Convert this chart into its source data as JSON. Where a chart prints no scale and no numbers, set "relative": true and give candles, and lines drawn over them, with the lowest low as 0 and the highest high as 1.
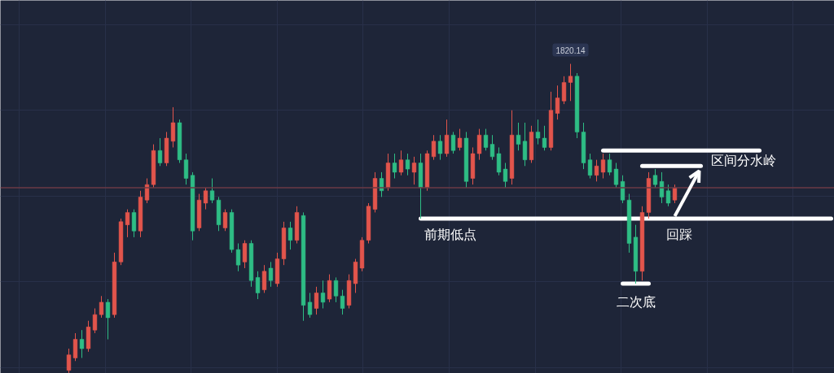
{
  "chart_data": {
    "type": "candlestick",
    "relative": true,
    "grid": true,
    "categories": [
      null,
      null,
      null,
      null,
      null,
      null,
      null,
      null,
      null,
      null,
      null,
      null,
      null,
      null,
      null,
      null,
      null,
      null,
      null,
      null,
      null,
      null,
      null,
      null,
      null,
      null,
      null,
      null,
      null,
      null,
      null,
      null,
      null,
      null,
      null,
      null,
      null,
      null,
      null,
      null,
      null,
      null,
      null,
      null,
      null,
      null,
      null,
      null,
      null,
      null,
      null,
      null,
      null,
      null,
      null,
      null,
      null,
      null,
      null,
      null,
      null,
      null,
      null,
      null,
      null,
      null,
      null,
      null,
      null,
      null,
      null,
      null,
      null,
      null,
      null,
      null,
      null,
      null,
      null,
      null,
      null,
      null,
      null,
      null,
      null,
      null,
      null,
      null,
      null,
      null,
      null,
      null,
      null,
      null,
      null,
      null,
      null,
      null,
      null,
      null,
      null,
      null,
      null,
      null,
      null,
      null,
      null,
      null,
      null,
      null,
      null,
      null,
      null,
      null,
      null,
      null,
      null,
      null,
      null,
      null,
      null,
      null,
      null,
      null,
      null,
      null,
      null,
      null
    ],
    "ohlc": [
      null,
      null,
      null,
      null,
      null,
      null,
      null,
      null,
      null,
      null,
      [
        0.01,
        0.08,
        0.0,
        0.06
      ],
      [
        0.05,
        0.13,
        0.04,
        0.11
      ],
      [
        0.11,
        0.14,
        0.05,
        0.08
      ],
      [
        0.08,
        0.17,
        0.07,
        0.15
      ],
      [
        0.14,
        0.21,
        0.13,
        0.19
      ],
      [
        0.19,
        0.25,
        0.18,
        0.23
      ],
      [
        0.23,
        0.24,
        0.11,
        0.18
      ],
      [
        0.19,
        0.39,
        0.18,
        0.36
      ],
      [
        0.36,
        0.5,
        0.35,
        0.49
      ],
      [
        0.48,
        0.53,
        0.44,
        0.52
      ],
      [
        0.52,
        0.53,
        0.44,
        0.46
      ],
      [
        0.46,
        0.59,
        0.44,
        0.57
      ],
      [
        0.56,
        0.63,
        0.55,
        0.61
      ],
      [
        0.61,
        0.74,
        0.6,
        0.72
      ],
      [
        0.72,
        0.76,
        0.67,
        0.68
      ],
      [
        0.68,
        0.78,
        0.67,
        0.76
      ],
      [
        0.75,
        0.86,
        0.73,
        0.81
      ],
      [
        0.81,
        0.82,
        0.68,
        0.69
      ],
      [
        0.69,
        0.71,
        0.61,
        0.63
      ],
      [
        0.64,
        0.65,
        0.43,
        0.46
      ],
      [
        0.47,
        0.58,
        0.46,
        0.56
      ],
      [
        0.55,
        0.6,
        0.53,
        0.59
      ],
      [
        0.59,
        0.63,
        0.55,
        0.56
      ],
      [
        0.56,
        0.57,
        0.46,
        0.48
      ],
      [
        0.47,
        0.53,
        0.46,
        0.52
      ],
      [
        0.52,
        0.53,
        0.39,
        0.4
      ],
      [
        0.4,
        0.42,
        0.33,
        0.35
      ],
      [
        0.36,
        0.43,
        0.34,
        0.42
      ],
      [
        0.42,
        0.43,
        0.28,
        0.3
      ],
      [
        0.31,
        0.33,
        0.24,
        0.26
      ],
      [
        0.27,
        0.35,
        0.26,
        0.33
      ],
      [
        0.34,
        0.36,
        0.28,
        0.3
      ],
      [
        0.29,
        0.39,
        0.28,
        0.37
      ],
      [
        0.37,
        0.49,
        0.35,
        0.47
      ],
      [
        0.47,
        0.49,
        0.4,
        0.43
      ],
      [
        0.43,
        0.54,
        0.42,
        0.52
      ],
      [
        0.51,
        0.52,
        0.17,
        0.22
      ],
      [
        0.23,
        0.26,
        0.18,
        0.19
      ],
      [
        0.21,
        0.28,
        0.19,
        0.26
      ],
      [
        0.26,
        0.3,
        0.21,
        0.23
      ],
      [
        0.24,
        0.32,
        0.23,
        0.3
      ],
      [
        0.3,
        0.31,
        0.23,
        0.25
      ],
      [
        0.25,
        0.27,
        0.19,
        0.21
      ],
      [
        0.22,
        0.32,
        0.21,
        0.3
      ],
      [
        0.29,
        0.37,
        0.26,
        0.36
      ],
      [
        0.34,
        0.44,
        0.33,
        0.43
      ],
      [
        0.43,
        0.55,
        0.42,
        0.54
      ],
      [
        0.53,
        0.65,
        0.52,
        0.63
      ],
      [
        0.63,
        0.65,
        0.57,
        0.59
      ],
      [
        0.6,
        0.71,
        0.59,
        0.68
      ],
      [
        0.68,
        0.71,
        0.63,
        0.65
      ],
      [
        0.65,
        0.72,
        0.64,
        0.69
      ],
      [
        0.69,
        0.71,
        0.64,
        0.66
      ],
      [
        0.65,
        0.7,
        0.61,
        0.68
      ],
      [
        0.68,
        0.71,
        0.5,
        0.6
      ],
      [
        0.6,
        0.72,
        0.59,
        0.71
      ],
      [
        0.7,
        0.77,
        0.69,
        0.75
      ],
      [
        0.75,
        0.77,
        0.69,
        0.71
      ],
      [
        0.71,
        0.82,
        0.7,
        0.77
      ],
      [
        0.77,
        0.78,
        0.71,
        0.72
      ],
      [
        0.73,
        0.79,
        0.72,
        0.76
      ],
      [
        0.76,
        0.78,
        0.6,
        0.62
      ],
      [
        0.63,
        0.73,
        0.61,
        0.71
      ],
      [
        0.71,
        0.79,
        0.69,
        0.77
      ],
      [
        0.77,
        0.79,
        0.72,
        0.73
      ],
      [
        0.74,
        0.77,
        0.69,
        0.7
      ],
      [
        0.71,
        0.73,
        0.64,
        0.65
      ],
      [
        0.66,
        0.68,
        0.6,
        0.62
      ],
      [
        0.63,
        0.85,
        0.61,
        0.77
      ],
      [
        0.77,
        0.81,
        0.72,
        0.74
      ],
      [
        0.75,
        0.81,
        0.67,
        0.69
      ],
      [
        0.69,
        0.8,
        0.68,
        0.78
      ],
      [
        0.78,
        0.82,
        0.74,
        0.76
      ],
      [
        0.76,
        0.8,
        0.72,
        0.73
      ],
      [
        0.73,
        0.91,
        0.72,
        0.85
      ],
      [
        0.84,
        0.93,
        0.82,
        0.89
      ],
      [
        0.88,
        0.96,
        0.87,
        0.94
      ],
      [
        0.94,
        1.0,
        0.88,
        0.96
      ],
      [
        0.96,
        0.97,
        0.76,
        0.78
      ],
      [
        0.78,
        0.81,
        0.66,
        0.68
      ],
      [
        0.69,
        0.71,
        0.63,
        0.64
      ],
      [
        0.64,
        0.69,
        0.62,
        0.67
      ],
      [
        0.65,
        0.71,
        0.63,
        0.69
      ],
      [
        0.69,
        0.71,
        0.64,
        0.65
      ],
      [
        0.66,
        0.68,
        0.6,
        0.61
      ],
      [
        0.62,
        0.64,
        0.55,
        0.56
      ],
      [
        0.56,
        0.58,
        0.39,
        0.42
      ],
      [
        0.44,
        0.48,
        0.29,
        0.33
      ],
      [
        0.33,
        0.54,
        0.3,
        0.52
      ],
      [
        0.52,
        0.65,
        0.5,
        0.63
      ],
      [
        0.64,
        0.66,
        0.6,
        0.61
      ],
      [
        0.62,
        0.65,
        0.55,
        0.57
      ],
      [
        0.59,
        0.61,
        0.54,
        0.55
      ],
      [
        0.56,
        0.61,
        0.55,
        0.6
      ],
      null,
      null,
      null,
      null,
      null,
      null,
      null,
      null,
      null,
      null,
      null,
      null,
      null,
      null,
      null,
      null,
      null,
      null,
      null,
      null,
      null,
      null,
      null,
      null
    ],
    "colors": [
      null,
      null,
      null,
      null,
      null,
      null,
      null,
      null,
      null,
      null,
      "#e2554c",
      "#e2554c",
      "#2ebd85",
      "#e2554c",
      "#e2554c",
      "#e2554c",
      "#2ebd85",
      "#e2554c",
      "#e2554c",
      "#e2554c",
      "#2ebd85",
      "#e2554c",
      "#e2554c",
      "#e2554c",
      "#2ebd85",
      "#e2554c",
      "#e2554c",
      "#2ebd85",
      "#2ebd85",
      "#2ebd85",
      "#e2554c",
      "#e2554c",
      "#2ebd85",
      "#2ebd85",
      "#e2554c",
      "#2ebd85",
      "#2ebd85",
      "#e2554c",
      "#2ebd85",
      "#2ebd85",
      "#e2554c",
      "#2ebd85",
      "#e2554c",
      "#e2554c",
      "#2ebd85",
      "#e2554c",
      "#2ebd85",
      "#2ebd85",
      "#e2554c",
      "#2ebd85",
      "#e2554c",
      "#2ebd85",
      "#2ebd85",
      "#e2554c",
      "#e2554c",
      "#e2554c",
      "#e2554c",
      "#e2554c",
      "#2ebd85",
      "#e2554c",
      "#2ebd85",
      "#e2554c",
      "#2ebd85",
      "#e2554c",
      "#2ebd85",
      "#e2554c",
      "#e2554c",
      "#2ebd85",
      "#e2554c",
      "#2ebd85",
      "#e2554c",
      "#2ebd85",
      "#e2554c",
      "#e2554c",
      "#2ebd85",
      "#2ebd85",
      "#2ebd85",
      "#2ebd85",
      "#e2554c",
      "#2ebd85",
      "#2ebd85",
      "#e2554c",
      "#2ebd85",
      "#2ebd85",
      "#e2554c",
      "#e2554c",
      "#e2554c",
      "#e2554c",
      "#2ebd85",
      "#2ebd85",
      "#2ebd85",
      "#e2554c",
      "#e2554c",
      "#2ebd85",
      "#2ebd85",
      "#2ebd85",
      "#2ebd85",
      "#2ebd85",
      "#e2554c",
      "#e2554c",
      "#2ebd85",
      "#2ebd85",
      "#2ebd85",
      "#e2554c",
      null,
      null,
      null,
      null,
      null,
      null,
      null,
      null,
      null,
      null,
      null,
      null,
      null,
      null,
      null,
      null,
      null,
      null,
      null,
      null,
      null,
      null,
      null,
      null
    ],
    "series": [
      {
        "type": "line",
        "name": "前期低点",
        "color": "#ffffff",
        "values": [
          null,
          null,
          null,
          null,
          null,
          null,
          null,
          null,
          null,
          null,
          null,
          null,
          null,
          null,
          null,
          null,
          null,
          null,
          null,
          null,
          null,
          null,
          null,
          null,
          null,
          null,
          null,
          null,
          null,
          null,
          null,
          null,
          null,
          null,
          null,
          null,
          null,
          null,
          null,
          null,
          null,
          null,
          null,
          null,
          null,
          null,
          null,
          null,
          null,
          null,
          null,
          null,
          null,
          null,
          null,
          null,
          null,
          null,
          null,
          null,
          null,
          null,
          null,
          null,
          0.5,
          0.5,
          0.5,
          0.5,
          0.5,
          0.5,
          0.5,
          0.5,
          0.5,
          0.5,
          0.5,
          0.5,
          0.5,
          0.5,
          0.5,
          0.5,
          0.5,
          0.5,
          0.5,
          0.5,
          0.5,
          0.5,
          0.5,
          0.5,
          0.5,
          0.5,
          0.5,
          0.5,
          0.5,
          0.5,
          0.5,
          0.5,
          0.5,
          0.5,
          0.5,
          0.5,
          0.5,
          0.5,
          0.5,
          0.5,
          0.5,
          0.5,
          0.5,
          0.5,
          0.5,
          0.5,
          0.5,
          0.5,
          0.5,
          0.5,
          0.5,
          0.5,
          0.5,
          0.5,
          0.5,
          0.5,
          0.5,
          0.5,
          0.5,
          0.5,
          0.5,
          0.5,
          0.5,
          0.5
        ]
      },
      {
        "type": "line",
        "color": "#ffffff",
        "values": [
          null,
          null,
          null,
          null,
          null,
          null,
          null,
          null,
          null,
          null,
          null,
          null,
          null,
          null,
          null,
          null,
          null,
          null,
          null,
          null,
          null,
          null,
          null,
          null,
          null,
          null,
          null,
          null,
          null,
          null,
          null,
          null,
          null,
          null,
          null,
          null,
          null,
          null,
          null,
          null,
          null,
          null,
          null,
          null,
          null,
          null,
          null,
          null,
          null,
          null,
          null,
          null,
          null,
          null,
          null,
          null,
          null,
          null,
          null,
          null,
          null,
          null,
          null,
          null,
          null,
          null,
          null,
          null,
          null,
          null,
          null,
          null,
          null,
          null,
          null,
          null,
          null,
          null,
          null,
          null,
          null,
          null,
          null,
          null,
          null,
          null,
          null,
          null,
          null,
          null,
          null,
          null,
          0.72,
          0.72,
          0.72,
          0.72,
          0.72,
          0.72,
          0.72,
          0.72,
          0.72,
          0.72,
          0.72,
          0.72,
          0.72,
          0.72,
          0.72,
          0.72,
          0.72,
          0.72,
          0.72,
          0.72,
          0.72,
          0.72,
          0.72,
          0.72,
          0.72,
          null,
          null,
          null,
          null,
          null,
          null,
          null,
          null,
          null,
          null,
          null
        ]
      },
      {
        "type": "line",
        "name": "区间分水岭",
        "color": "#ffffff",
        "values": [
          null,
          null,
          null,
          null,
          null,
          null,
          null,
          null,
          null,
          null,
          null,
          null,
          null,
          null,
          null,
          null,
          null,
          null,
          null,
          null,
          null,
          null,
          null,
          null,
          null,
          null,
          null,
          null,
          null,
          null,
          null,
          null,
          null,
          null,
          null,
          null,
          null,
          null,
          null,
          null,
          null,
          null,
          null,
          null,
          null,
          null,
          null,
          null,
          null,
          null,
          null,
          null,
          null,
          null,
          null,
          null,
          null,
          null,
          null,
          null,
          null,
          null,
          null,
          null,
          null,
          null,
          null,
          null,
          null,
          null,
          null,
          null,
          null,
          null,
          null,
          null,
          null,
          null,
          null,
          null,
          null,
          null,
          null,
          null,
          null,
          null,
          null,
          null,
          null,
          null,
          null,
          null,
          null,
          null,
          null,
          null,
          null,
          null,
          0.67,
          0.67,
          0.67,
          0.67,
          0.67,
          0.67,
          0.67,
          0.67,
          0.67,
          0.67,
          null,
          null,
          null,
          null,
          null,
          null,
          null,
          null,
          null,
          null,
          null,
          null,
          null,
          null,
          null,
          null,
          null,
          null,
          null,
          null
        ]
      },
      {
        "type": "line",
        "name": "二次底",
        "color": "#ffffff",
        "values": [
          null,
          null,
          null,
          null,
          null,
          null,
          null,
          null,
          null,
          null,
          null,
          null,
          null,
          null,
          null,
          null,
          null,
          null,
          null,
          null,
          null,
          null,
          null,
          null,
          null,
          null,
          null,
          null,
          null,
          null,
          null,
          null,
          null,
          null,
          null,
          null,
          null,
          null,
          null,
          null,
          null,
          null,
          null,
          null,
          null,
          null,
          null,
          null,
          null,
          null,
          null,
          null,
          null,
          null,
          null,
          null,
          null,
          null,
          null,
          null,
          null,
          null,
          null,
          null,
          null,
          null,
          null,
          null,
          null,
          null,
          null,
          null,
          null,
          null,
          null,
          null,
          null,
          null,
          null,
          null,
          null,
          null,
          null,
          null,
          null,
          null,
          null,
          null,
          null,
          null,
          null,
          null,
          null,
          null,
          null,
          0.29,
          0.29,
          0.29,
          0.29,
          0.29,
          null,
          null,
          null,
          null,
          null,
          null,
          null,
          null,
          null,
          null,
          null,
          null,
          null,
          null,
          null,
          null,
          null,
          null,
          null,
          null,
          null,
          null,
          null,
          null,
          null,
          null,
          null,
          null
        ]
      }
    ],
    "ref_lines": [
      {
        "axis": "y",
        "value": 0.6,
        "color": "#6b3a45"
      }
    ],
    "annotations": [
      "回踩",
      {
        "text": "1820.14",
        "y": 1.0
      }
    ]
  }
}
